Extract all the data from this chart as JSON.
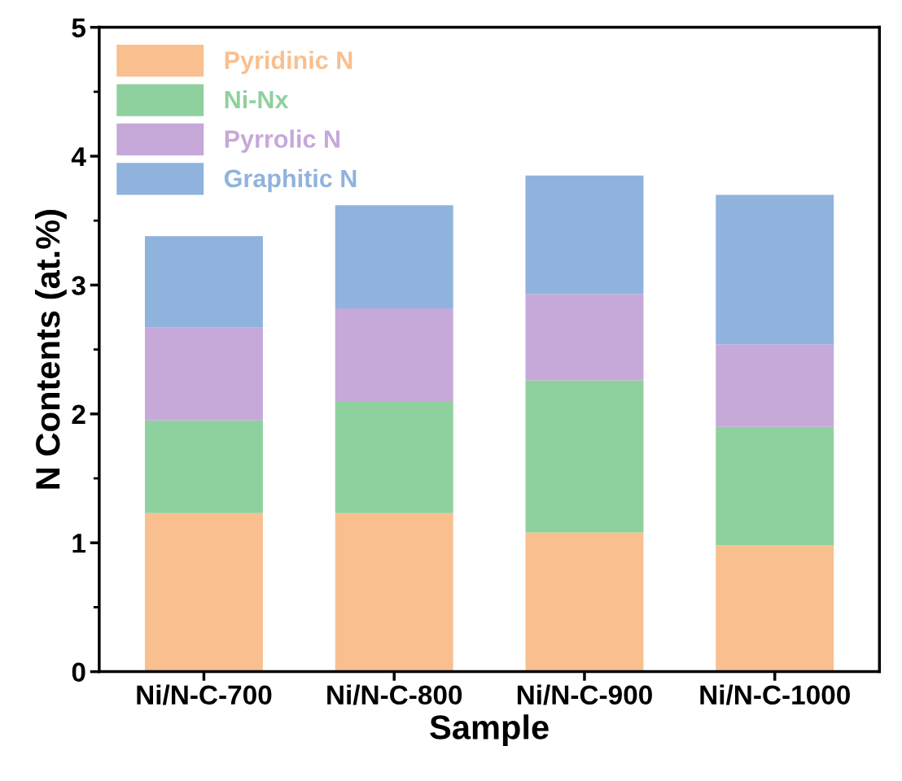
{
  "chart_data": {
    "type": "bar",
    "stacked": true,
    "xlabel": "Sample",
    "ylabel": "N Contents (at.%)",
    "categories": [
      "Ni/N-C-700",
      "Ni/N-C-800",
      "Ni/N-C-900",
      "Ni/N-C-1000"
    ],
    "series": [
      {
        "name": "Pyridinic N",
        "color": "#f9bf8f",
        "values": [
          1.23,
          1.23,
          1.08,
          0.98
        ]
      },
      {
        "name": "Ni-Nx",
        "color": "#8fd19e",
        "values": [
          0.72,
          0.87,
          1.18,
          0.92
        ]
      },
      {
        "name": "Pyrrolic N",
        "color": "#c6a8d9",
        "values": [
          0.72,
          0.72,
          0.67,
          0.64
        ]
      },
      {
        "name": "Graphitic N",
        "color": "#8fb3dd",
        "values": [
          0.71,
          0.8,
          0.92,
          1.16
        ]
      }
    ],
    "ylim": [
      0,
      5
    ],
    "yticks": [
      0,
      1,
      2,
      3,
      4,
      5
    ],
    "grid": false,
    "legend": "top left"
  }
}
